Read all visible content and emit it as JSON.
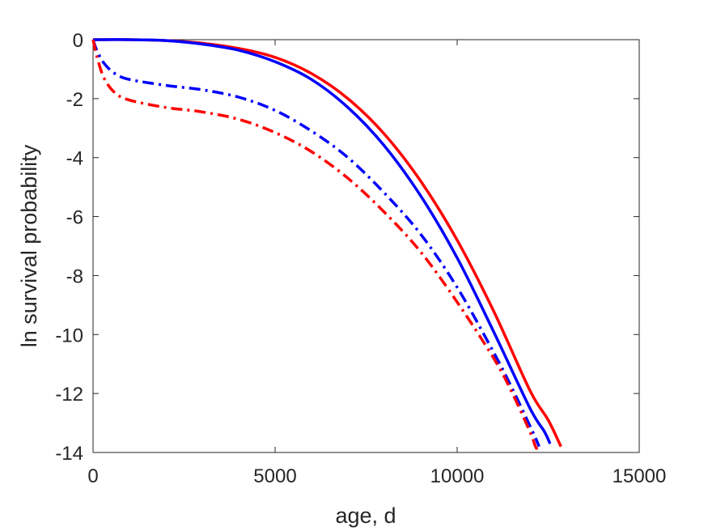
{
  "chart_data": {
    "type": "line",
    "title": "",
    "xlabel": "age, d",
    "ylabel": "ln survival probability",
    "xlim": [
      0,
      15000
    ],
    "ylim": [
      -14,
      0
    ],
    "xticks": [
      0,
      5000,
      10000,
      15000
    ],
    "yticks": [
      0,
      -2,
      -4,
      -6,
      -8,
      -10,
      -12,
      -14
    ],
    "xtick_labels": [
      "0",
      "5000",
      "10000",
      "15000"
    ],
    "ytick_labels": [
      "0",
      "-2",
      "-4",
      "-6",
      "-8",
      "-10",
      "-12",
      "-14"
    ],
    "grid": false,
    "legend": "none",
    "series": [
      {
        "color": "#ff0000",
        "style": "solid",
        "x": [
          0,
          1000,
          2000,
          3000,
          4000,
          5000,
          6000,
          7000,
          8000,
          9000,
          10000,
          11000,
          12000,
          12500,
          12850
        ],
        "y": [
          0,
          0,
          -0.03,
          -0.12,
          -0.3,
          -0.6,
          -1.15,
          -2.0,
          -3.2,
          -4.8,
          -6.8,
          -9.2,
          -11.9,
          -12.9,
          -13.8
        ]
      },
      {
        "color": "#0000ff",
        "style": "solid",
        "x": [
          0,
          1000,
          2000,
          3000,
          4000,
          5000,
          6000,
          7000,
          8000,
          9000,
          10000,
          11000,
          12000,
          12400,
          12550
        ],
        "y": [
          0,
          0,
          -0.03,
          -0.15,
          -0.36,
          -0.75,
          -1.35,
          -2.3,
          -3.6,
          -5.3,
          -7.4,
          -9.9,
          -12.5,
          -13.3,
          -13.7
        ]
      },
      {
        "color": "#0000ff",
        "style": "dashdot",
        "x": [
          0,
          100,
          300,
          600,
          1000,
          2000,
          3000,
          4000,
          5000,
          6000,
          7000,
          8000,
          9000,
          10000,
          11000,
          11500,
          12000,
          12150,
          12250
        ],
        "y": [
          0,
          -0.35,
          -0.8,
          -1.15,
          -1.35,
          -1.55,
          -1.7,
          -1.95,
          -2.4,
          -3.1,
          -4.0,
          -5.2,
          -6.6,
          -8.4,
          -10.6,
          -11.8,
          -13.1,
          -13.5,
          -13.8
        ]
      },
      {
        "color": "#ff0000",
        "style": "dashdot",
        "x": [
          0,
          100,
          300,
          600,
          1000,
          2000,
          3000,
          4000,
          5000,
          6000,
          7000,
          8000,
          9000,
          10000,
          11000,
          11500,
          12000,
          12150,
          12200,
          12300
        ],
        "y": [
          0,
          -0.55,
          -1.3,
          -1.8,
          -2.05,
          -2.3,
          -2.45,
          -2.7,
          -3.15,
          -3.8,
          -4.7,
          -5.85,
          -7.2,
          -8.9,
          -10.8,
          -11.95,
          -13.3,
          -13.8,
          -13.85,
          -13.8
        ]
      }
    ]
  }
}
